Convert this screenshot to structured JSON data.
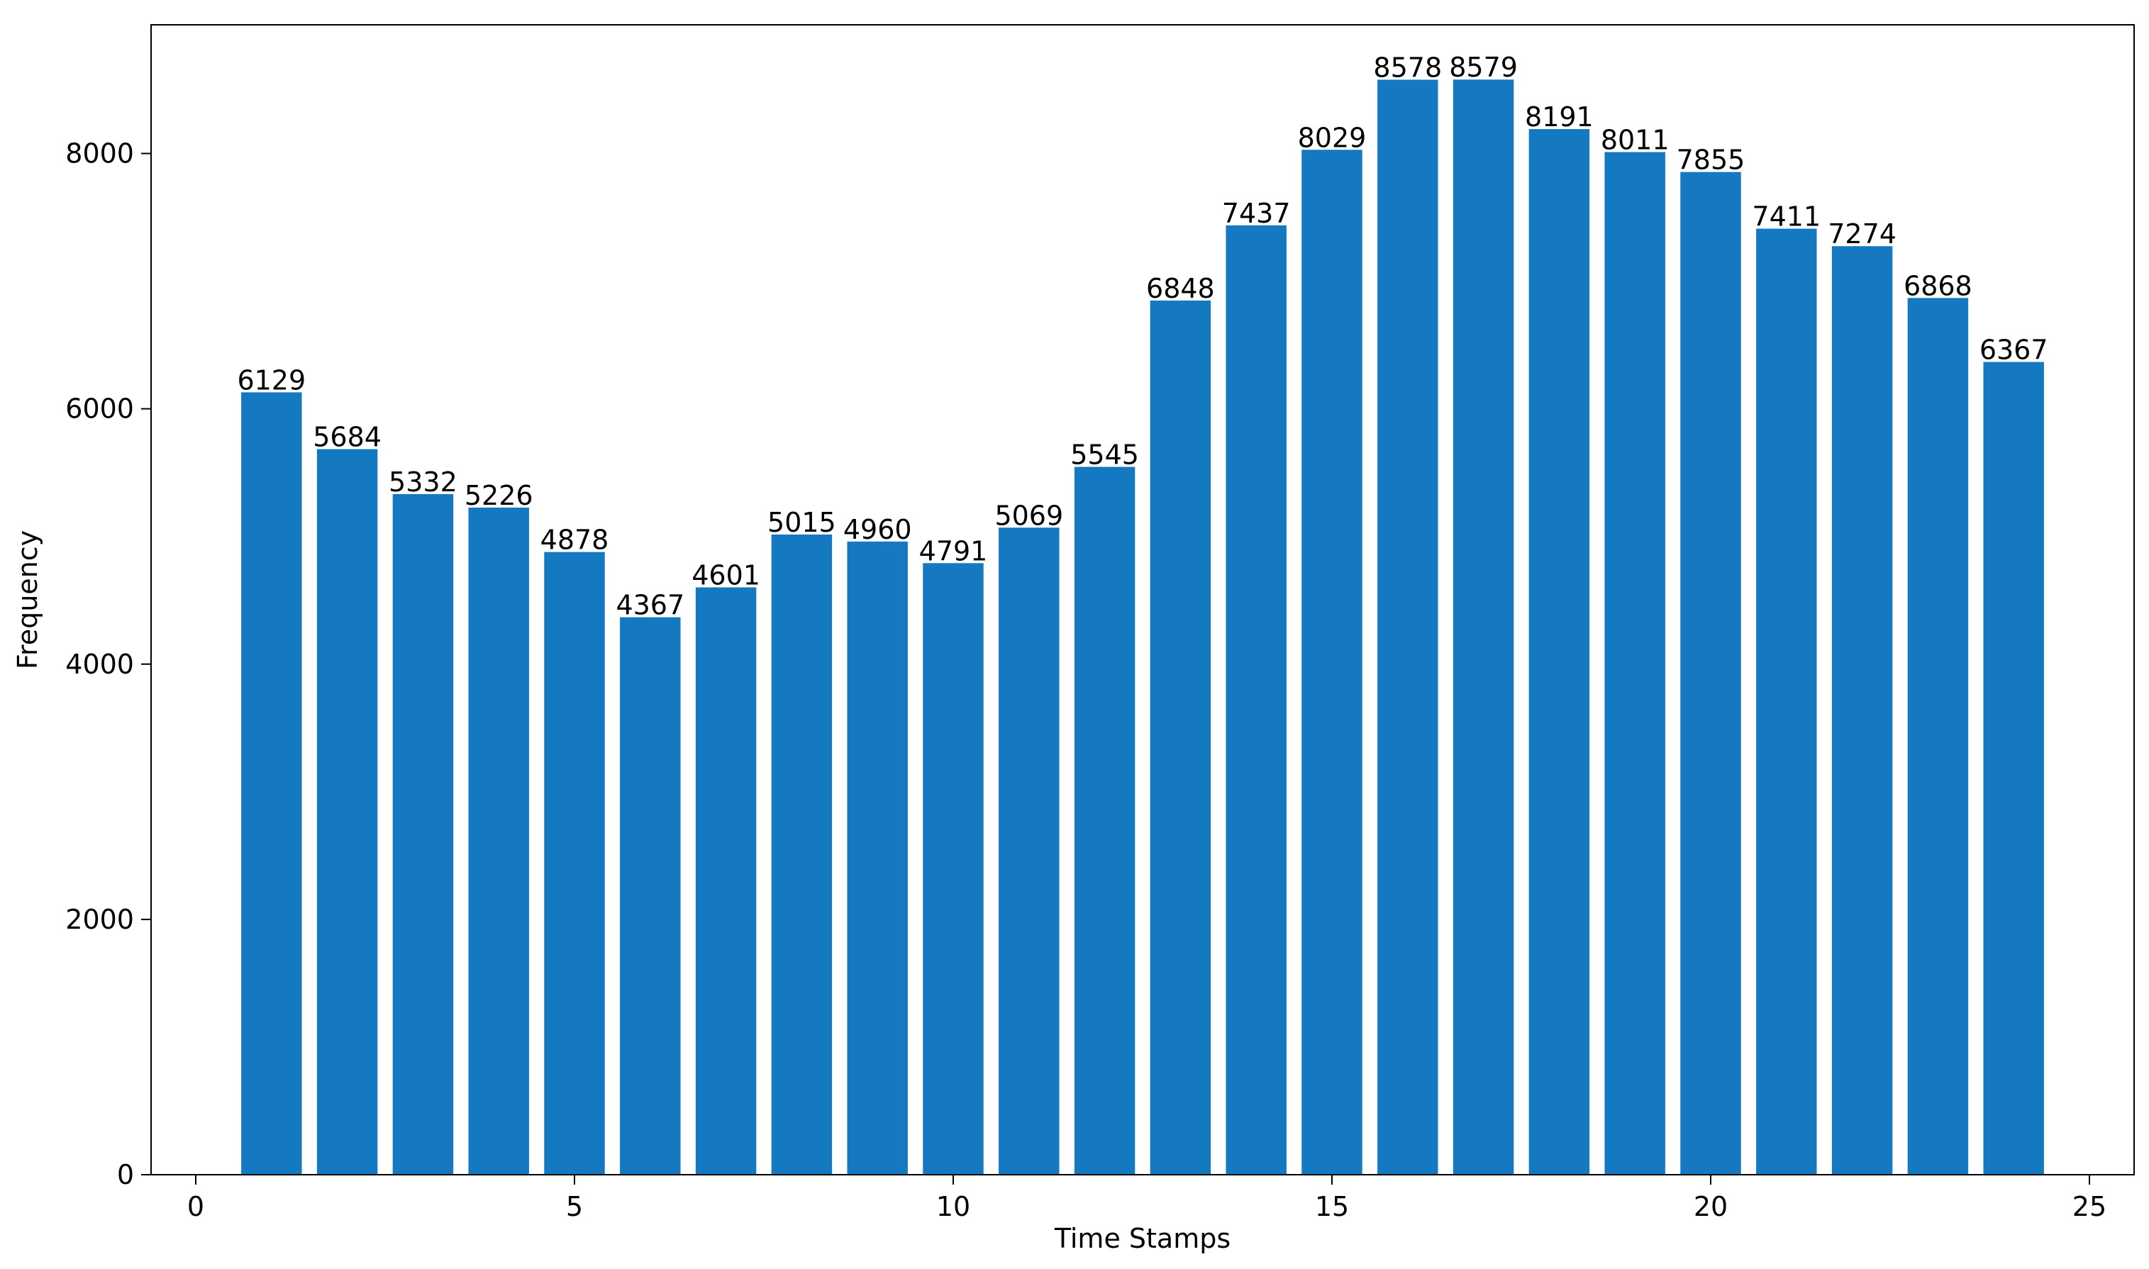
{
  "chart_data": {
    "type": "bar",
    "x": [
      1,
      2,
      3,
      4,
      5,
      6,
      7,
      8,
      9,
      10,
      11,
      12,
      13,
      14,
      15,
      16,
      17,
      18,
      19,
      20,
      21,
      22,
      23,
      24
    ],
    "values": [
      6129,
      5684,
      5332,
      5226,
      4878,
      4367,
      4601,
      5015,
      4960,
      4791,
      5069,
      5545,
      6848,
      7437,
      8029,
      8578,
      8579,
      8191,
      8011,
      7855,
      7411,
      7274,
      6868,
      6367
    ],
    "color": "#1579c1",
    "xlabel": "Time Stamps",
    "ylabel": "Frequency",
    "xlim": [
      -0.59,
      25.59
    ],
    "ylim": [
      0,
      9008
    ],
    "xticks": [
      0,
      5,
      10,
      15,
      20,
      25
    ],
    "yticks": [
      0,
      2000,
      4000,
      6000,
      8000
    ]
  }
}
